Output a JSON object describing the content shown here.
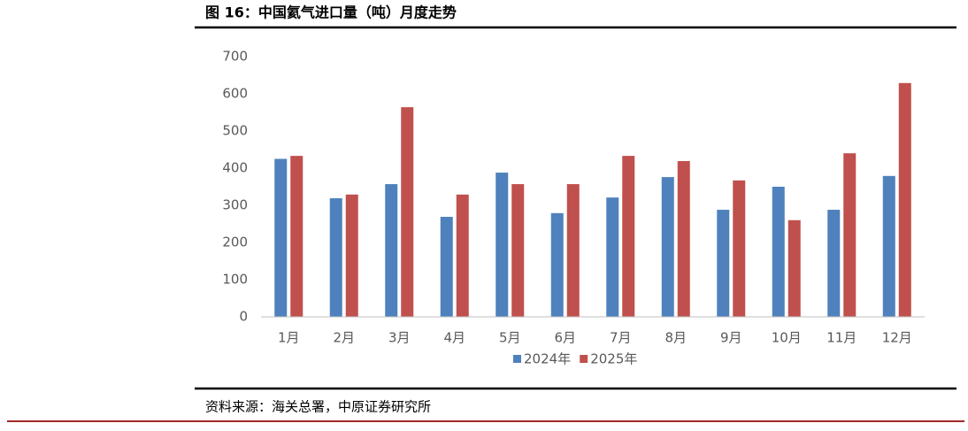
{
  "title": "图 16：中国氦气进口量（吨）月度走势",
  "source": "资料来源：海关总署，中原证券研究所",
  "chart_data": {
    "type": "bar",
    "categories": [
      "1月",
      "2月",
      "3月",
      "4月",
      "5月",
      "6月",
      "7月",
      "8月",
      "9月",
      "10月",
      "11月",
      "12月"
    ],
    "series": [
      {
        "name": "2024年",
        "color": "#4f81bd",
        "values": [
          425,
          319,
          357,
          269,
          388,
          279,
          321,
          376,
          288,
          350,
          288,
          379
        ]
      },
      {
        "name": "2025年",
        "color": "#c0504d",
        "values": [
          433,
          329,
          564,
          329,
          357,
          357,
          433,
          419,
          367,
          260,
          440,
          629
        ]
      }
    ],
    "ylim": [
      0,
      700
    ],
    "yticks": [
      0,
      100,
      200,
      300,
      400,
      500,
      600,
      700
    ],
    "grid": false,
    "legend": "bottom"
  }
}
